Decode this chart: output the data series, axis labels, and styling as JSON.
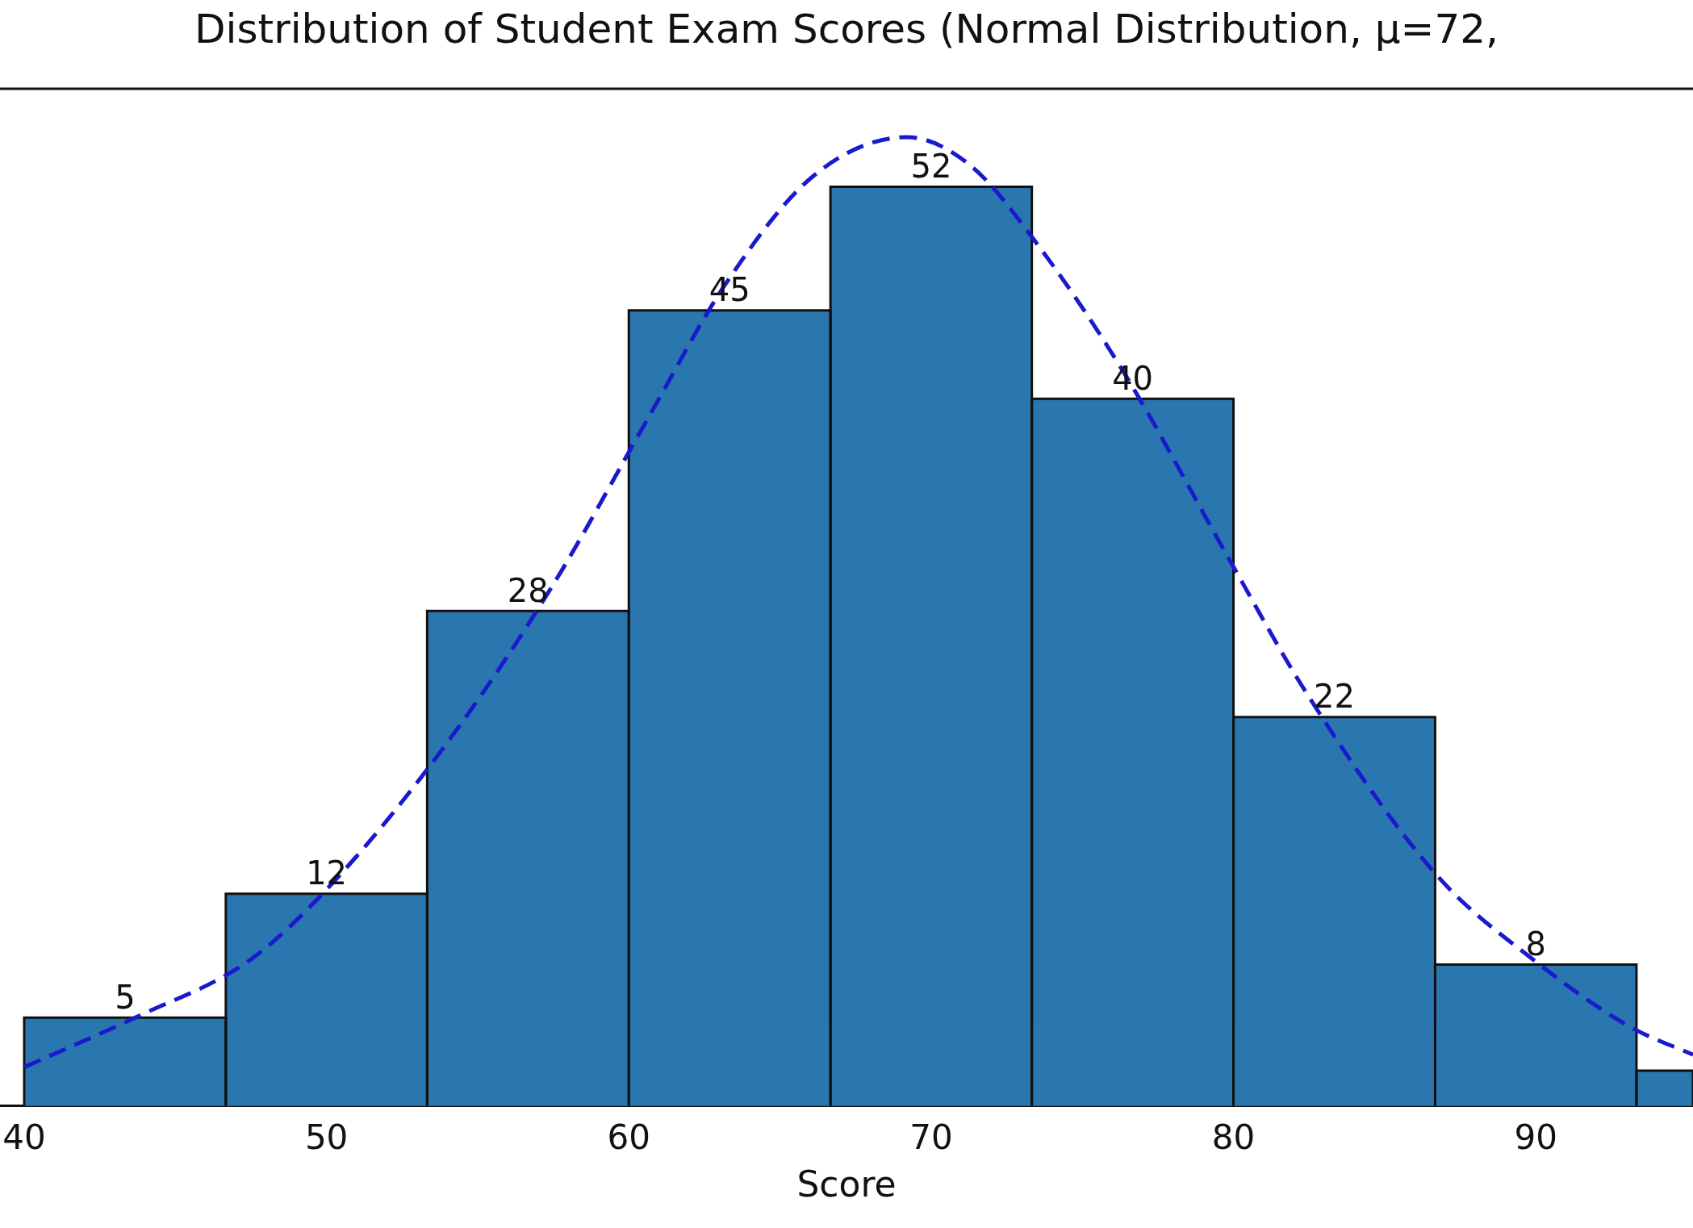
{
  "chart_data": {
    "type": "histogram",
    "title": "Distribution of Student Exam Scores (Normal Distribution, μ=72,",
    "xlabel": "Score",
    "bins": [
      40,
      46.67,
      53.33,
      60,
      66.67,
      73.33,
      80,
      86.67,
      93.33,
      95.2
    ],
    "values": [
      5,
      12,
      28,
      45,
      52,
      40,
      22,
      8,
      2
    ],
    "value_labels": [
      "5",
      "12",
      "28",
      "45",
      "52",
      "40",
      "22",
      "8",
      null
    ],
    "color": "#2a77b0",
    "xlim": [
      39.2,
      95.2
    ],
    "xticks": [
      40,
      50,
      60,
      70,
      80,
      90
    ],
    "tick_labels": "x",
    "grid": false,
    "series": [
      {
        "type": "line",
        "line_style": "dashed",
        "color": "#1a1acc",
        "x": [
          40,
          43.8,
          47.5,
          50.3,
          54.1,
          57.5,
          60.7,
          63.2,
          66.1,
          69.2,
          71.3,
          73.4,
          76.3,
          79.9,
          82.4,
          86.7,
          89.9,
          93.1,
          95.2
        ],
        "values": [
          2.2,
          5.1,
          8.3,
          12.8,
          20.8,
          29.5,
          39.1,
          46.5,
          52.6,
          54.8,
          53.2,
          49,
          41.7,
          30.8,
          23.4,
          13.1,
          8.3,
          4.5,
          2.9
        ]
      }
    ]
  }
}
